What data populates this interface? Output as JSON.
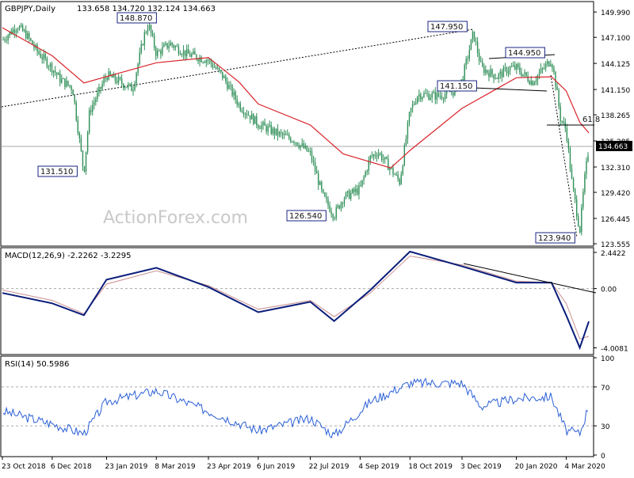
{
  "header": {
    "symbol": "GBPJPY,Daily",
    "ohlc": "133.658 134.720 132.124 134.663",
    "watermark": "ActionForex.com"
  },
  "colors": {
    "candle": "#2f8f58",
    "ma": "#d9242a",
    "macd": "#0a1d7a",
    "signal": "#c98f8f",
    "trendline": "#000000",
    "labelBorder": "#1a2480",
    "grid": "#aaaaaa"
  },
  "chart_data": [
    {
      "type": "candlestick",
      "title": "GBPJPY,Daily",
      "ylim": [
        123.555,
        151.0
      ],
      "y_ticks": [
        "149.990",
        "147.100",
        "144.125",
        "141.150",
        "138.265",
        "135.285",
        "132.310",
        "129.420",
        "126.445",
        "123.555"
      ],
      "x_ticks": [
        "23 Oct 2018",
        "6 Dec 2018",
        "23 Jan 2019",
        "8 Mar 2019",
        "23 Apr 2019",
        "6 Jun 2019",
        "22 Jul 2019",
        "4 Sep 2019",
        "18 Oct 2019",
        "3 Dec 2019",
        "20 Jan 2020",
        "4 Mar 2020"
      ],
      "last_price": "134.663",
      "price_line": 134.663,
      "close_path": [
        {
          "date": "23 Oct 2018",
          "close": 146.8
        },
        {
          "date": "5 Nov 2018",
          "close": 148.4
        },
        {
          "date": "13 Nov 2018",
          "close": 147.4
        },
        {
          "date": "22 Nov 2018",
          "close": 145.6
        },
        {
          "date": "6 Dec 2018",
          "close": 143.6
        },
        {
          "date": "13 Dec 2018",
          "close": 142.3
        },
        {
          "date": "24 Dec 2018",
          "close": 141.3
        },
        {
          "date": "3 Jan 2019",
          "close": 131.6
        },
        {
          "date": "8 Jan 2019",
          "close": 138.7
        },
        {
          "date": "16 Jan 2019",
          "close": 140.8
        },
        {
          "date": "23 Jan 2019",
          "close": 142.8
        },
        {
          "date": "4 Feb 2019",
          "close": 142.0
        },
        {
          "date": "15 Feb 2019",
          "close": 141.2
        },
        {
          "date": "25 Feb 2019",
          "close": 147.2
        },
        {
          "date": "1 Mar 2019",
          "close": 148.6
        },
        {
          "date": "8 Mar 2019",
          "close": 145.2
        },
        {
          "date": "20 Mar 2019",
          "close": 146.4
        },
        {
          "date": "4 Apr 2019",
          "close": 145.2
        },
        {
          "date": "23 Apr 2019",
          "close": 144.5
        },
        {
          "date": "6 May 2019",
          "close": 142.6
        },
        {
          "date": "20 May 2019",
          "close": 139.4
        },
        {
          "date": "6 Jun 2019",
          "close": 137.2
        },
        {
          "date": "25 Jun 2019",
          "close": 136.0
        },
        {
          "date": "8 Jul 2019",
          "close": 135.4
        },
        {
          "date": "22 Jul 2019",
          "close": 133.8
        },
        {
          "date": "2 Aug 2019",
          "close": 129.0
        },
        {
          "date": "12 Aug 2019",
          "close": 126.8
        },
        {
          "date": "20 Aug 2019",
          "close": 128.8
        },
        {
          "date": "4 Sep 2019",
          "close": 129.8
        },
        {
          "date": "13 Sep 2019",
          "close": 133.4
        },
        {
          "date": "20 Sep 2019",
          "close": 134.0
        },
        {
          "date": "1 Oct 2019",
          "close": 132.1
        },
        {
          "date": "9 Oct 2019",
          "close": 130.6
        },
        {
          "date": "18 Oct 2019",
          "close": 138.6
        },
        {
          "date": "25 Oct 2019",
          "close": 140.6
        },
        {
          "date": "12 Nov 2019",
          "close": 140.4
        },
        {
          "date": "26 Nov 2019",
          "close": 141.0
        },
        {
          "date": "3 Dec 2019",
          "close": 142.2
        },
        {
          "date": "13 Dec 2019",
          "close": 147.6
        },
        {
          "date": "20 Dec 2019",
          "close": 143.6
        },
        {
          "date": "3 Jan 2020",
          "close": 142.6
        },
        {
          "date": "14 Jan 2020",
          "close": 143.6
        },
        {
          "date": "20 Jan 2020",
          "close": 143.6
        },
        {
          "date": "3 Feb 2020",
          "close": 142.0
        },
        {
          "date": "12 Feb 2020",
          "close": 143.4
        },
        {
          "date": "20 Feb 2020",
          "close": 144.6
        },
        {
          "date": "24 Feb 2020",
          "close": 141.6
        },
        {
          "date": "28 Feb 2020",
          "close": 137.8
        },
        {
          "date": "4 Mar 2020",
          "close": 136.6
        },
        {
          "date": "9 Mar 2020",
          "close": 130.6
        },
        {
          "date": "16 Mar 2020",
          "close": 125.0
        },
        {
          "date": "20 Mar 2020",
          "close": 130.6
        },
        {
          "date": "24 Mar 2020",
          "close": 134.663
        }
      ],
      "moving_average_path": [
        {
          "date": "23 Oct 2018",
          "value": 148.2
        },
        {
          "date": "6 Dec 2018",
          "value": 145.0
        },
        {
          "date": "3 Jan 2019",
          "value": 141.9
        },
        {
          "date": "8 Mar 2019",
          "value": 144.2
        },
        {
          "date": "23 Apr 2019",
          "value": 144.8
        },
        {
          "date": "20 May 2019",
          "value": 142.0
        },
        {
          "date": "6 Jun 2019",
          "value": 139.5
        },
        {
          "date": "22 Jul 2019",
          "value": 137.1
        },
        {
          "date": "20 Aug 2019",
          "value": 133.8
        },
        {
          "date": "1 Oct 2019",
          "value": 132.2
        },
        {
          "date": "18 Oct 2019",
          "value": 134.2
        },
        {
          "date": "3 Dec 2019",
          "value": 139.0
        },
        {
          "date": "20 Jan 2020",
          "value": 142.5
        },
        {
          "date": "20 Feb 2020",
          "value": 142.6
        },
        {
          "date": "4 Mar 2020",
          "value": 141.0
        },
        {
          "date": "16 Mar 2020",
          "value": 137.4
        },
        {
          "date": "24 Mar 2020",
          "value": 136.2
        }
      ],
      "annotations": [
        {
          "text": "148.870",
          "date": "8 Mar 2019",
          "price": 148.87
        },
        {
          "text": "131.510",
          "date": "3 Jan 2019",
          "price": 131.51
        },
        {
          "text": "126.540",
          "date": "12 Aug 2019",
          "price": 126.54
        },
        {
          "text": "147.950",
          "date": "13 Dec 2019",
          "price": 147.95
        },
        {
          "text": "144.950",
          "date": "20 Jan 2020",
          "price": 144.95
        },
        {
          "text": "141.150",
          "date": "13 Dec 2019",
          "price": 141.15
        },
        {
          "text": "123.940",
          "date": "16 Mar 2020",
          "price": 123.94
        },
        {
          "text": "61.8",
          "date": "24 Mar 2020",
          "price": 137.0
        }
      ]
    },
    {
      "type": "line",
      "title": "MACD(12,26,9) -2.2262 -3.2295",
      "ylim": [
        -4.3,
        2.6
      ],
      "y_ticks": [
        "2.4422",
        "0.00",
        "-4.0081"
      ],
      "series": [
        {
          "name": "MACD",
          "points": [
            {
              "date": "23 Oct 2018",
              "value": -0.3
            },
            {
              "date": "6 Dec 2018",
              "value": -1.0
            },
            {
              "date": "3 Jan 2019",
              "value": -1.8
            },
            {
              "date": "23 Jan 2019",
              "value": 0.6
            },
            {
              "date": "8 Mar 2019",
              "value": 1.4
            },
            {
              "date": "23 Apr 2019",
              "value": 0.1
            },
            {
              "date": "6 Jun 2019",
              "value": -1.6
            },
            {
              "date": "22 Jul 2019",
              "value": -0.9
            },
            {
              "date": "12 Aug 2019",
              "value": -2.2
            },
            {
              "date": "13 Sep 2019",
              "value": -0.1
            },
            {
              "date": "18 Oct 2019",
              "value": 2.5
            },
            {
              "date": "3 Dec 2019",
              "value": 1.5
            },
            {
              "date": "20 Jan 2020",
              "value": 0.4
            },
            {
              "date": "20 Feb 2020",
              "value": 0.4
            },
            {
              "date": "4 Mar 2020",
              "value": -1.8
            },
            {
              "date": "16 Mar 2020",
              "value": -4.0
            },
            {
              "date": "24 Mar 2020",
              "value": -2.2262
            }
          ]
        },
        {
          "name": "Signal",
          "points": [
            {
              "date": "23 Oct 2018",
              "value": -0.1
            },
            {
              "date": "6 Dec 2018",
              "value": -0.8
            },
            {
              "date": "3 Jan 2019",
              "value": -1.7
            },
            {
              "date": "23 Jan 2019",
              "value": 0.3
            },
            {
              "date": "8 Mar 2019",
              "value": 1.2
            },
            {
              "date": "23 Apr 2019",
              "value": 0.2
            },
            {
              "date": "6 Jun 2019",
              "value": -1.4
            },
            {
              "date": "22 Jul 2019",
              "value": -0.8
            },
            {
              "date": "12 Aug 2019",
              "value": -1.9
            },
            {
              "date": "13 Sep 2019",
              "value": -0.3
            },
            {
              "date": "18 Oct 2019",
              "value": 2.2
            },
            {
              "date": "3 Dec 2019",
              "value": 1.6
            },
            {
              "date": "20 Jan 2020",
              "value": 0.5
            },
            {
              "date": "20 Feb 2020",
              "value": 0.4
            },
            {
              "date": "4 Mar 2020",
              "value": -1.0
            },
            {
              "date": "16 Mar 2020",
              "value": -3.4
            },
            {
              "date": "24 Mar 2020",
              "value": -3.2295
            }
          ]
        }
      ]
    },
    {
      "type": "line",
      "title": "RSI(14) 50.5986",
      "ylim": [
        0,
        100
      ],
      "y_ticks": [
        "100",
        "70",
        "30",
        "0"
      ],
      "levels": [
        70,
        30
      ],
      "series": [
        {
          "name": "RSI",
          "points": [
            {
              "date": "23 Oct 2018",
              "value": 45
            },
            {
              "date": "6 Dec 2018",
              "value": 32
            },
            {
              "date": "3 Jan 2019",
              "value": 22
            },
            {
              "date": "23 Jan 2019",
              "value": 55
            },
            {
              "date": "8 Mar 2019",
              "value": 66
            },
            {
              "date": "23 Apr 2019",
              "value": 45
            },
            {
              "date": "6 Jun 2019",
              "value": 25
            },
            {
              "date": "22 Jul 2019",
              "value": 38
            },
            {
              "date": "12 Aug 2019",
              "value": 20
            },
            {
              "date": "13 Sep 2019",
              "value": 55
            },
            {
              "date": "18 Oct 2019",
              "value": 74
            },
            {
              "date": "3 Dec 2019",
              "value": 74
            },
            {
              "date": "20 Dec 2019",
              "value": 50
            },
            {
              "date": "20 Jan 2020",
              "value": 58
            },
            {
              "date": "20 Feb 2020",
              "value": 60
            },
            {
              "date": "4 Mar 2020",
              "value": 25
            },
            {
              "date": "16 Mar 2020",
              "value": 22
            },
            {
              "date": "24 Mar 2020",
              "value": 50.5986
            }
          ]
        }
      ]
    }
  ]
}
